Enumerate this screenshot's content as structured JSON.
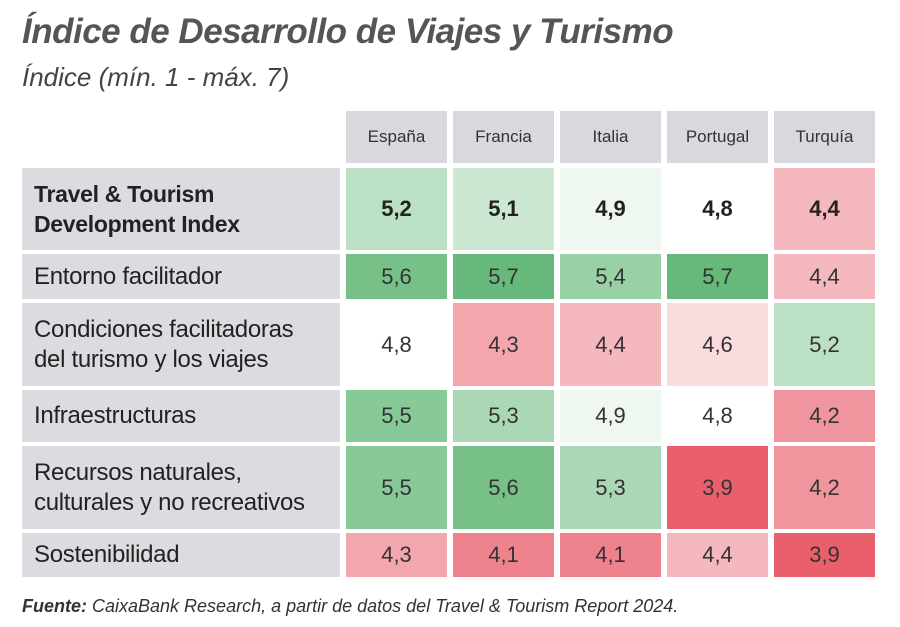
{
  "title": "Índice de Desarrollo de Viajes y Turismo",
  "subtitle": "Índice (mín. 1 - máx. 7)",
  "source_label": "Fuente:",
  "source_text": " CaixaBank Research, a partir de datos del Travel & Tourism Report 2024.",
  "colors": {
    "header_bg": "#d7d9dc",
    "row_label_bg": "#dadcdf",
    "high": "#66b97a",
    "mid": "#ffffff",
    "low": "#e9606c"
  },
  "chart_data": {
    "type": "heatmap",
    "columns": [
      "España",
      "Francia",
      "Italia",
      "Portugal",
      "Turquía"
    ],
    "rows": [
      {
        "label": "Travel & Tourism Development Index",
        "label_lines": [
          "Travel & Tourism",
          "Development Index"
        ],
        "bold": true,
        "display": [
          "5,2",
          "5,1",
          "4,9",
          "4,8",
          "4,4"
        ],
        "values": [
          5.2,
          5.1,
          4.9,
          4.8,
          4.4
        ]
      },
      {
        "label": "Entorno facilitador",
        "label_lines": [
          "Entorno facilitador"
        ],
        "bold": false,
        "display": [
          "5,6",
          "5,7",
          "5,4",
          "5,7",
          "4,4"
        ],
        "values": [
          5.6,
          5.7,
          5.4,
          5.7,
          4.4
        ]
      },
      {
        "label": "Condiciones facilitadoras del turismo y los viajes",
        "label_lines": [
          "Condiciones facilitadoras",
          "del turismo y los viajes"
        ],
        "bold": false,
        "display": [
          "4,8",
          "4,3",
          "4,4",
          "4,6",
          "5,2"
        ],
        "values": [
          4.8,
          4.3,
          4.4,
          4.6,
          5.2
        ]
      },
      {
        "label": "Infraestructuras",
        "label_lines": [
          "Infraestructuras"
        ],
        "bold": false,
        "display": [
          "5,5",
          "5,3",
          "4,9",
          "4,8",
          "4,2"
        ],
        "values": [
          5.5,
          5.3,
          4.9,
          4.8,
          4.2
        ]
      },
      {
        "label": "Recursos naturales, culturales y no recreativos",
        "label_lines": [
          "Recursos naturales,",
          "culturales y no recreativos"
        ],
        "bold": false,
        "display": [
          "5,5",
          "5,6",
          "5,3",
          "3,9",
          "4,2"
        ],
        "values": [
          5.5,
          5.6,
          5.3,
          3.9,
          4.2
        ]
      },
      {
        "label": "Sostenibilidad",
        "label_lines": [
          "Sostenibilidad"
        ],
        "bold": false,
        "display": [
          "4,3",
          "4,1",
          "4,1",
          "4,4",
          "3,9"
        ],
        "values": [
          4.3,
          4.1,
          4.1,
          4.4,
          3.9
        ]
      }
    ]
  }
}
